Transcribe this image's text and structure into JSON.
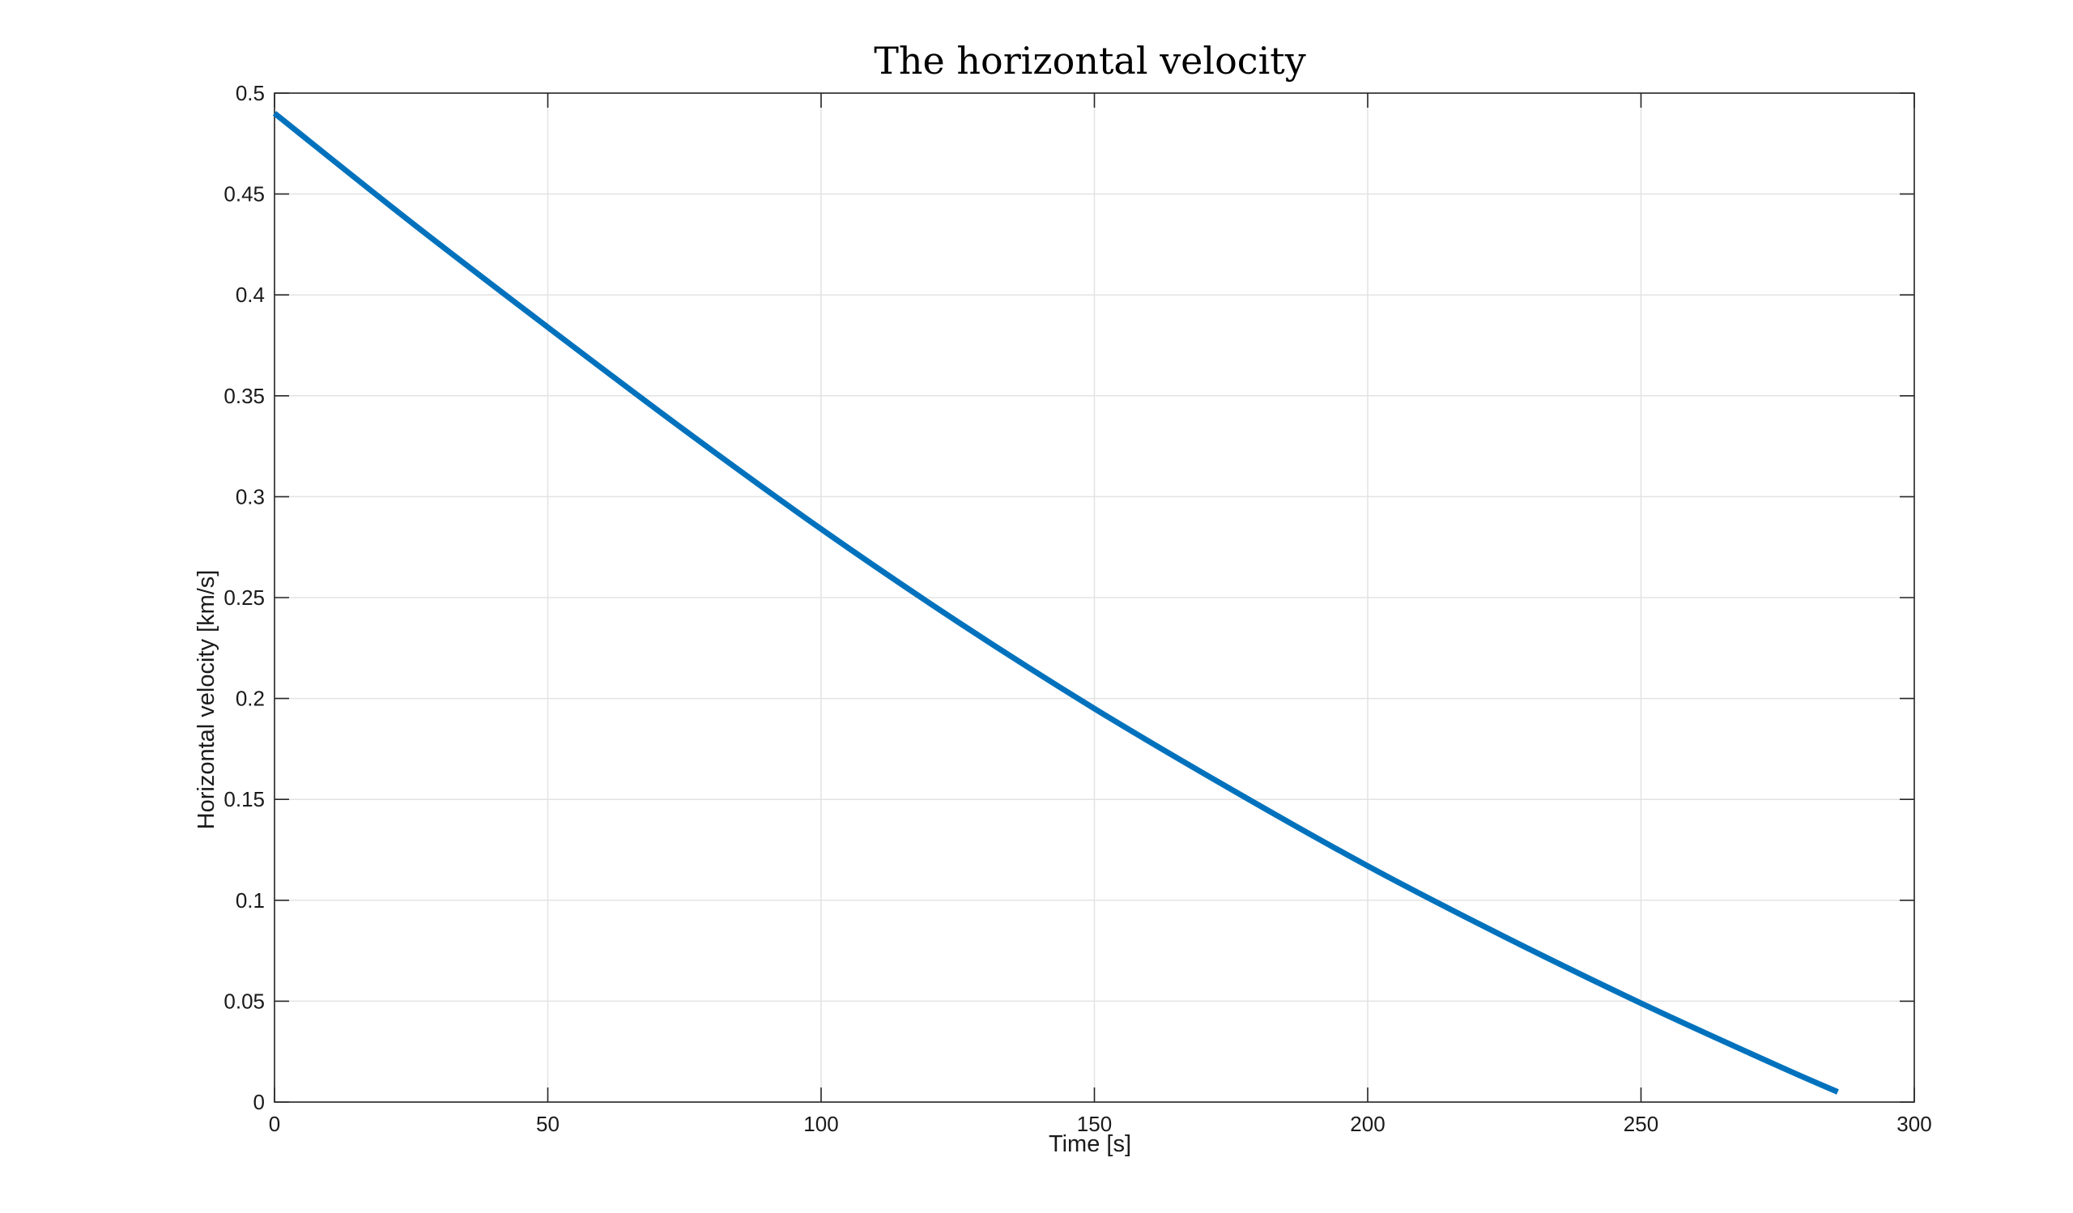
{
  "colors": {
    "background": "#ffffff",
    "series": "#0072BD",
    "grid": "#e3e3e3",
    "axis": "#262626"
  },
  "chart_data": {
    "type": "line",
    "title": "The horizontal velocity",
    "xlabel": "Time [s]",
    "ylabel": "Horizontal velocity [km/s]",
    "xlim": [
      0,
      300
    ],
    "ylim": [
      0,
      0.5
    ],
    "grid": true,
    "box": true,
    "x_ticks": [
      0,
      50,
      100,
      150,
      200,
      250,
      300
    ],
    "x_tick_labels": [
      "0",
      "50",
      "100",
      "150",
      "200",
      "250",
      "300"
    ],
    "y_ticks": [
      0,
      0.05,
      0.1,
      0.15,
      0.2,
      0.25,
      0.3,
      0.35,
      0.4,
      0.45,
      0.5
    ],
    "y_tick_labels": [
      "0",
      "0.05",
      "0.1",
      "0.15",
      "0.2",
      "0.25",
      "0.3",
      "0.35",
      "0.4",
      "0.45",
      "0.5"
    ],
    "series": [
      {
        "x": [
          0,
          25,
          50,
          75,
          100,
          125,
          150,
          175,
          200,
          225,
          250,
          275,
          286
        ],
        "y": [
          0.49,
          0.436,
          0.384,
          0.333,
          0.284,
          0.238,
          0.195,
          0.155,
          0.117,
          0.082,
          0.049,
          0.018,
          0.005
        ]
      }
    ]
  }
}
